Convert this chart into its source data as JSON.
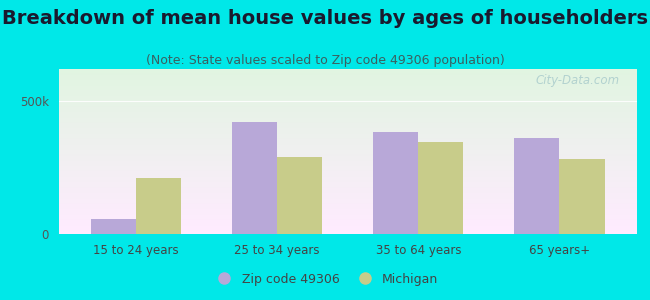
{
  "title": "Breakdown of mean house values by ages of householders",
  "subtitle": "(Note: State values scaled to Zip code 49306 population)",
  "categories": [
    "15 to 24 years",
    "25 to 34 years",
    "35 to 64 years",
    "65 years+"
  ],
  "zip_values": [
    55000,
    420000,
    385000,
    360000
  ],
  "michigan_values": [
    210000,
    290000,
    345000,
    280000
  ],
  "zip_color": "#b8a8d8",
  "michigan_color": "#c8cc8a",
  "background_outer": "#00e8e8",
  "ylim": [
    0,
    620000
  ],
  "yticks": [
    0,
    500000
  ],
  "ytick_labels": [
    "0",
    "500k"
  ],
  "legend_zip_label": "Zip code 49306",
  "legend_michigan_label": "Michigan",
  "watermark": "City-Data.com",
  "bar_width": 0.32,
  "title_fontsize": 14,
  "subtitle_fontsize": 9
}
